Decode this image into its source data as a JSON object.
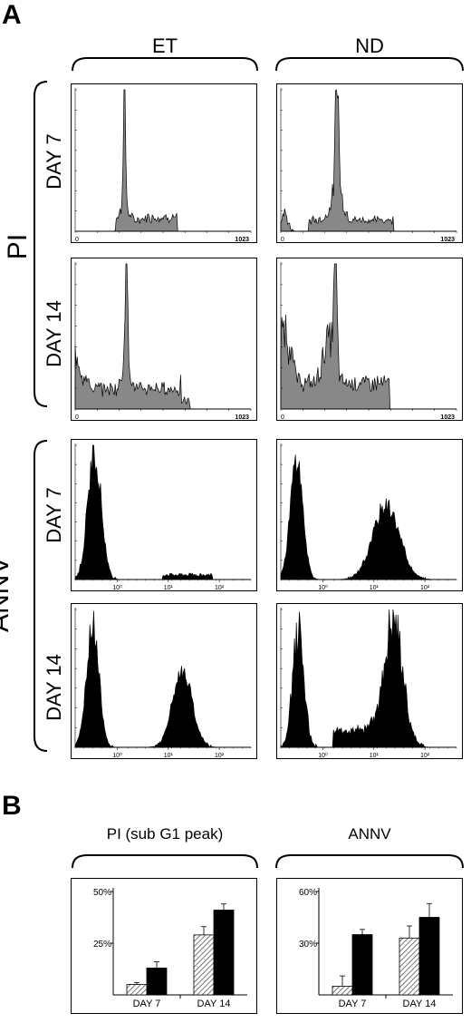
{
  "panel_a": {
    "letter": "A",
    "columns": [
      "ET",
      "ND"
    ],
    "groups": [
      {
        "label": "PI",
        "rows": [
          "DAY 7",
          "DAY 14"
        ]
      },
      {
        "label": "ANNV",
        "rows": [
          "DAY 7",
          "DAY 14"
        ]
      }
    ],
    "pi_axis": {
      "min_label": "0",
      "max_label": "1023"
    },
    "annv_axis": {
      "tick_labels": [
        "10⁰",
        "10¹",
        "10²"
      ]
    }
  },
  "panel_b": {
    "letter": "B",
    "titles": [
      "PI (sub G1 peak)",
      "ANNV"
    ]
  },
  "chart_data": [
    {
      "type": "bar",
      "title": "PI (sub G1 peak)",
      "categories": [
        "DAY 7",
        "DAY 14"
      ],
      "series": [
        {
          "values": [
            5,
            29
          ],
          "errors": [
            1,
            4
          ],
          "pattern": "hatched"
        },
        {
          "values": [
            13,
            41
          ],
          "errors": [
            3,
            3
          ],
          "pattern": "solid"
        }
      ],
      "ylim": [
        0,
        50
      ],
      "yticks": [
        25,
        50
      ],
      "ytick_labels": [
        "25%",
        "50%"
      ]
    },
    {
      "type": "bar",
      "title": "ANNV",
      "categories": [
        "DAY 7",
        "DAY 14"
      ],
      "series": [
        {
          "values": [
            5,
            33
          ],
          "errors": [
            6,
            7
          ],
          "pattern": "hatched"
        },
        {
          "values": [
            35,
            45
          ],
          "errors": [
            3,
            8
          ],
          "pattern": "solid"
        }
      ],
      "ylim": [
        0,
        60
      ],
      "yticks": [
        30,
        60
      ],
      "ytick_labels": [
        "30%",
        "60%"
      ]
    }
  ],
  "colors": {
    "histogram_fill": "#888888",
    "annv_fill": "#000000",
    "axis": "#000000"
  }
}
